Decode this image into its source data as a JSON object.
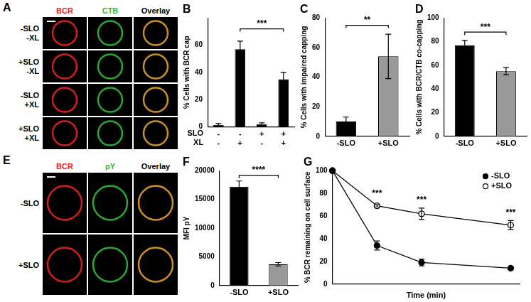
{
  "image_panels": [
    {
      "title": "A",
      "columns": [
        {
          "label": "BCR",
          "color": "#e8221c"
        },
        {
          "label": "CTB",
          "color": "#2fb936"
        },
        {
          "label": "Overlay",
          "color": "#000000"
        }
      ],
      "rows": [
        [
          "-SLO",
          "-XL"
        ],
        [
          "+SLO",
          "-XL"
        ],
        [
          "-SLO",
          "+XL"
        ],
        [
          "+SLO",
          "+XL"
        ]
      ]
    },
    {
      "title": "E",
      "columns": [
        {
          "label": "BCR",
          "color": "#e8221c"
        },
        {
          "label": "pY",
          "color": "#2fb936"
        },
        {
          "label": "Overlay",
          "color": "#000000"
        }
      ],
      "rows": [
        [
          "-SLO"
        ],
        [
          "+SLO"
        ]
      ]
    }
  ],
  "chart_data": [
    {
      "type": "bar",
      "title": "B",
      "ylabel": "% Cells with BCR cap",
      "category_rows": [
        "SLO",
        "XL"
      ],
      "categories": [
        [
          "-",
          "-"
        ],
        [
          "-",
          "+"
        ],
        [
          "+",
          "-"
        ],
        [
          "+",
          "+"
        ]
      ],
      "values": [
        1.5,
        57,
        2,
        35
      ],
      "errors": [
        1,
        6,
        1,
        5
      ],
      "color": "#000000",
      "ylim": [
        0,
        80
      ],
      "yticks": [
        0,
        20,
        40,
        60
      ],
      "annotations": [
        {
          "text": "***",
          "from": 1,
          "to": 3,
          "y": 72
        }
      ]
    },
    {
      "type": "bar",
      "title": "C",
      "ylabel": "% Cells with impaired capping",
      "categories": [
        "-SLO",
        "+SLO"
      ],
      "values": [
        10,
        54
      ],
      "errors": [
        3,
        15
      ],
      "colors": [
        "#000000",
        "#999999"
      ],
      "ylim": [
        0,
        80
      ],
      "yticks": [
        0,
        20,
        40,
        60,
        80
      ],
      "annotations": [
        {
          "text": "**",
          "from": 0,
          "to": 1,
          "y": 75
        }
      ]
    },
    {
      "type": "bar",
      "title": "D",
      "ylabel": "% Cells with BCR/CTB co-capping",
      "categories": [
        "-SLO",
        "+SLO"
      ],
      "values": [
        77,
        55
      ],
      "errors": [
        4,
        3
      ],
      "colors": [
        "#000000",
        "#999999"
      ],
      "ylim": [
        0,
        100
      ],
      "yticks": [
        0,
        20,
        40,
        60,
        80,
        100
      ],
      "annotations": [
        {
          "text": "***",
          "from": 0,
          "to": 1,
          "y": 88
        }
      ]
    },
    {
      "type": "bar",
      "title": "F",
      "ylabel": "MFI pY",
      "categories": [
        "-SLO",
        "+SLO"
      ],
      "values": [
        17200,
        3700
      ],
      "errors": [
        1000,
        300
      ],
      "colors": [
        "#000000",
        "#999999"
      ],
      "ylim": [
        0,
        20000
      ],
      "yticks": [
        0,
        5000,
        10000,
        15000,
        20000
      ],
      "annotations": [
        {
          "text": "****",
          "from": 0,
          "to": 1,
          "y": 19200
        }
      ]
    },
    {
      "type": "line",
      "title": "G",
      "xlabel": "Time (min)",
      "ylabel": "% BCR remaining on cell surface",
      "x": [
        0,
        5,
        10,
        20
      ],
      "series": [
        {
          "name": "-SLO",
          "color": "#000000",
          "marker": "circle",
          "values": [
            100,
            34,
            19,
            14
          ],
          "errors": [
            0,
            4,
            3,
            1
          ]
        },
        {
          "name": "+SLO",
          "color": "#000000",
          "marker": "open_circle",
          "values": [
            100,
            69,
            62,
            52
          ],
          "errors": [
            0,
            1,
            5,
            4
          ]
        }
      ],
      "xlim": [
        0,
        21
      ],
      "ylim": [
        0,
        100
      ],
      "yticks": [
        0,
        20,
        40,
        60,
        80,
        100
      ],
      "tick_labels": "y",
      "legend": "upper right",
      "annotations": [
        {
          "text": "***",
          "x": 5,
          "y": 76
        },
        {
          "text": "***",
          "x": 10,
          "y": 70
        },
        {
          "text": "***",
          "x": 20,
          "y": 59
        }
      ]
    }
  ]
}
